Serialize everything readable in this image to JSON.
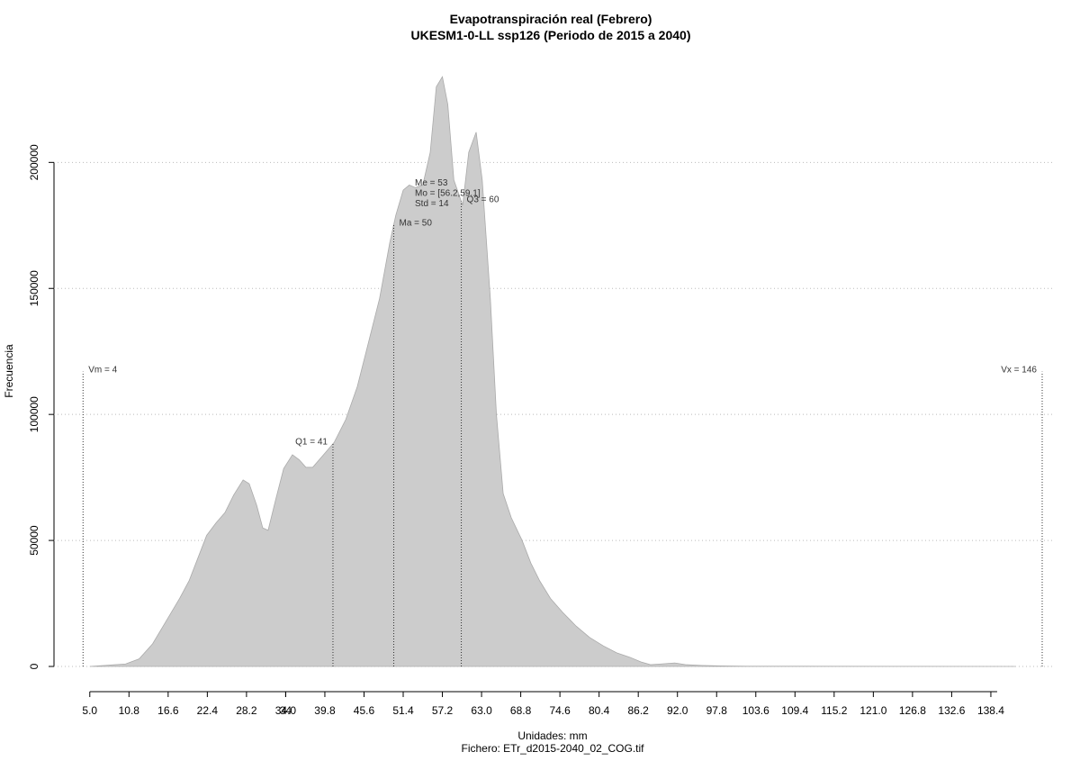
{
  "chart_data": {
    "type": "area",
    "title": "Evapotranspiración real (Febrero)",
    "subtitle": "UKESM1-0-LL ssp126 (Periodo de 2015 a 2040)",
    "x_label": "Unidades: mm",
    "caption": "Fichero: ETr_d2015-2040_02_COG.tif",
    "y_label": "Frecuencia",
    "color": "#cccccc",
    "x": [
      5,
      7.7,
      10.3,
      12.3,
      14.3,
      16.3,
      18.3,
      19.7,
      21,
      22.3,
      23.7,
      25,
      26.3,
      27.7,
      28.6,
      29.7,
      30.6,
      31.4,
      32.5,
      33.7,
      35,
      36,
      37,
      38,
      39.6,
      41.2,
      42.9,
      44.6,
      46.3,
      47.9,
      49.4,
      50.3,
      51.4,
      52.3,
      53.2,
      54.3,
      55.4,
      56.3,
      57.2,
      58,
      58.9,
      60.2,
      61.1,
      62.2,
      63.1,
      64.3,
      65.2,
      66.2,
      67.4,
      69,
      70.3,
      71.6,
      73.2,
      75,
      77,
      79,
      81,
      83,
      85,
      86.6,
      88,
      89.6,
      91.6,
      93.2,
      95.6,
      98.3,
      102.3,
      125,
      142
    ],
    "values": [
      0,
      500,
      1000,
      3000,
      9000,
      18000,
      27000,
      34000,
      43000,
      52000,
      57000,
      61000,
      68000,
      74000,
      72500,
      64000,
      55000,
      54000,
      66000,
      78500,
      84000,
      82000,
      79000,
      79000,
      84000,
      89000,
      98000,
      111000,
      129000,
      146000,
      168000,
      179000,
      189000,
      191000,
      190000,
      191000,
      204000,
      230000,
      234000,
      223000,
      193000,
      183000,
      204000,
      212000,
      193000,
      146000,
      100000,
      68600,
      59000,
      50000,
      41000,
      34000,
      27000,
      21500,
      16000,
      11500,
      8200,
      5400,
      3600,
      1800,
      700,
      1000,
      1400,
      700,
      400,
      200,
      100,
      50,
      0
    ],
    "xlim": [
      -0.3,
      147.6
    ],
    "ylim": [
      -10000,
      243000
    ],
    "xticks": [
      {
        "value": 5,
        "label": "5.0"
      },
      10.8,
      16.6,
      22.4,
      28.2,
      34,
      {
        "value": 34,
        "label": "34.0"
      },
      39.8,
      45.6,
      51.4,
      57.2,
      {
        "value": 63,
        "label": "63.0"
      },
      68.8,
      74.6,
      80.4,
      86.2,
      {
        "value": 92,
        "label": "92.0"
      },
      97.8,
      103.6,
      109.4,
      115.2,
      {
        "value": 121,
        "label": "121.0"
      },
      126.8,
      132.6,
      138.4
    ],
    "yticks": [
      0,
      50000,
      100000,
      150000,
      200000
    ],
    "grid": true,
    "markers": [
      {
        "label": "Vm = 4",
        "value": 4
      },
      {
        "label": "Q1 = 41",
        "value": 41
      },
      {
        "label": "Ma = 50",
        "value": 50
      },
      {
        "label": "Q3 = 60",
        "value": 60
      },
      {
        "label": "Vx = 146",
        "value": 146
      }
    ],
    "summary": [
      "Me = 53",
      "Mo = [56.2,59.1]",
      "Std = 14"
    ]
  }
}
